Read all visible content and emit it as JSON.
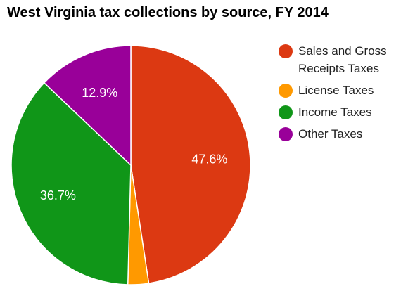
{
  "chart_data": {
    "type": "pie",
    "title": "West Virginia tax collections by source, FY 2014",
    "series": [
      {
        "name": "Sales and Gross Receipts Taxes",
        "value": 47.6,
        "label": "47.6%",
        "color": "#dc3912"
      },
      {
        "name": "License Taxes",
        "value": 2.8,
        "label": "",
        "color": "#ff9900"
      },
      {
        "name": "Income Taxes",
        "value": 36.7,
        "label": "36.7%",
        "color": "#109618"
      },
      {
        "name": "Other Taxes",
        "value": 12.9,
        "label": "12.9%",
        "color": "#990099"
      }
    ],
    "legend": {
      "position": "right",
      "items": [
        {
          "label_lines": [
            "Sales and Gross",
            "Receipts Taxes"
          ],
          "color": "#dc3912"
        },
        {
          "label_lines": [
            "License Taxes"
          ],
          "color": "#ff9900"
        },
        {
          "label_lines": [
            "Income Taxes"
          ],
          "color": "#109618"
        },
        {
          "label_lines": [
            "Other Taxes"
          ],
          "color": "#990099"
        }
      ]
    }
  }
}
